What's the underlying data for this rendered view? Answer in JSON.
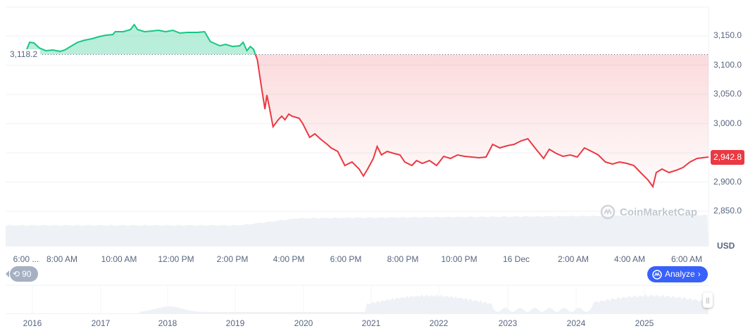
{
  "chart_data": {
    "type": "line",
    "currency_label": "USD",
    "baseline": 3118.2,
    "baseline_label": "3,118.2",
    "current_price": 2942.8,
    "current_price_label": "2,942.8",
    "ylim": [
      2825,
      3200
    ],
    "y_ticks": [
      "2,850.0",
      "2,900.0",
      "2,950.0",
      "3,000.0",
      "3,050.0",
      "3,100.0",
      "3,150.0"
    ],
    "y_tick_values": [
      2850,
      2900,
      2950,
      3000,
      3050,
      3100,
      3150
    ],
    "x_ticks": [
      "6:00 ...",
      "8:00 AM",
      "10:00 AM",
      "12:00 PM",
      "2:00 PM",
      "4:00 PM",
      "6:00 PM",
      "8:00 PM",
      "10:00 PM",
      "16 Dec",
      "2:00 AM",
      "4:00 AM",
      "6:00 AM"
    ],
    "colors": {
      "up": "#16c784",
      "down": "#ea3943",
      "accent": "#3861fb"
    },
    "grid": true,
    "points": [
      [
        "15 Dec 06:46",
        3127.1
      ],
      [
        "15 Dec 06:52",
        3139.2
      ],
      [
        "15 Dec 07:01",
        3138.0
      ],
      [
        "15 Dec 07:12",
        3129.6
      ],
      [
        "15 Dec 07:26",
        3124.7
      ],
      [
        "15 Dec 07:41",
        3125.9
      ],
      [
        "15 Dec 07:56",
        3123.5
      ],
      [
        "15 Dec 08:06",
        3125.9
      ],
      [
        "15 Dec 08:18",
        3131.9
      ],
      [
        "15 Dec 08:33",
        3139.2
      ],
      [
        "15 Dec 08:48",
        3142.8
      ],
      [
        "15 Dec 09:03",
        3145.2
      ],
      [
        "15 Dec 09:18",
        3148.8
      ],
      [
        "15 Dec 09:32",
        3151.2
      ],
      [
        "15 Dec 09:47",
        3152.4
      ],
      [
        "15 Dec 09:52",
        3157.2
      ],
      [
        "15 Dec 10:09",
        3157.2
      ],
      [
        "15 Dec 10:24",
        3160.8
      ],
      [
        "15 Dec 10:32",
        3169.3
      ],
      [
        "15 Dec 10:39",
        3160.8
      ],
      [
        "15 Dec 10:54",
        3157.2
      ],
      [
        "15 Dec 11:09",
        3158.4
      ],
      [
        "15 Dec 11:23",
        3159.6
      ],
      [
        "15 Dec 11:38",
        3157.2
      ],
      [
        "15 Dec 11:53",
        3159.6
      ],
      [
        "15 Dec 12:08",
        3154.8
      ],
      [
        "15 Dec 12:23",
        3156.0
      ],
      [
        "15 Dec 12:45",
        3156.0
      ],
      [
        "15 Dec 13:00",
        3157.2
      ],
      [
        "15 Dec 13:12",
        3140.4
      ],
      [
        "15 Dec 13:22",
        3136.7
      ],
      [
        "15 Dec 13:32",
        3133.1
      ],
      [
        "15 Dec 13:44",
        3135.5
      ],
      [
        "15 Dec 13:59",
        3131.9
      ],
      [
        "15 Dec 14:14",
        3133.1
      ],
      [
        "15 Dec 14:21",
        3139.2
      ],
      [
        "15 Dec 14:29",
        3124.7
      ],
      [
        "15 Dec 14:36",
        3131.9
      ],
      [
        "15 Dec 14:43",
        3127.1
      ],
      [
        "15 Dec 14:51",
        3109.0
      ],
      [
        "15 Dec 15:01",
        3054.8
      ],
      [
        "15 Dec 15:07",
        3024.7
      ],
      [
        "15 Dec 15:11",
        3048.8
      ],
      [
        "15 Dec 15:17",
        3024.7
      ],
      [
        "15 Dec 15:24",
        2994.6
      ],
      [
        "15 Dec 15:35",
        3006.6
      ],
      [
        "15 Dec 15:42",
        3012.6
      ],
      [
        "15 Dec 15:49",
        3006.6
      ],
      [
        "15 Dec 15:57",
        3016.3
      ],
      [
        "15 Dec 16:04",
        3012.6
      ],
      [
        "15 Dec 16:19",
        3009.0
      ],
      [
        "15 Dec 16:26",
        3000.6
      ],
      [
        "15 Dec 16:41",
        2976.5
      ],
      [
        "15 Dec 16:52",
        2982.5
      ],
      [
        "15 Dec 17:03",
        2974.1
      ],
      [
        "15 Dec 17:18",
        2964.5
      ],
      [
        "15 Dec 17:26",
        2958.4
      ],
      [
        "15 Dec 17:40",
        2952.4
      ],
      [
        "15 Dec 17:55",
        2928.3
      ],
      [
        "15 Dec 18:10",
        2934.3
      ],
      [
        "15 Dec 18:25",
        2922.3
      ],
      [
        "15 Dec 18:34",
        2910.2
      ],
      [
        "15 Dec 18:43",
        2922.3
      ],
      [
        "15 Dec 18:55",
        2940.4
      ],
      [
        "15 Dec 19:03",
        2960.8
      ],
      [
        "15 Dec 19:12",
        2946.4
      ],
      [
        "15 Dec 19:24",
        2952.4
      ],
      [
        "15 Dec 19:39",
        2948.8
      ],
      [
        "15 Dec 19:51",
        2946.4
      ],
      [
        "15 Dec 20:01",
        2934.3
      ],
      [
        "15 Dec 20:16",
        2928.3
      ],
      [
        "15 Dec 20:26",
        2936.7
      ],
      [
        "15 Dec 20:38",
        2931.9
      ],
      [
        "15 Dec 20:53",
        2936.7
      ],
      [
        "15 Dec 21:08",
        2928.3
      ],
      [
        "15 Dec 21:23",
        2944.0
      ],
      [
        "15 Dec 21:37",
        2940.4
      ],
      [
        "15 Dec 21:52",
        2946.4
      ],
      [
        "15 Dec 22:07",
        2944.0
      ],
      [
        "15 Dec 22:22",
        2942.8
      ],
      [
        "15 Dec 22:37",
        2941.6
      ],
      [
        "15 Dec 22:52",
        2942.8
      ],
      [
        "15 Dec 23:06",
        2964.5
      ],
      [
        "15 Dec 23:21",
        2958.4
      ],
      [
        "15 Dec 23:36",
        2962.0
      ],
      [
        "15 Dec 23:51",
        2964.5
      ],
      [
        "16 Dec 00:06",
        2970.5
      ],
      [
        "16 Dec 00:20",
        2974.1
      ],
      [
        "16 Dec 00:35",
        2958.4
      ],
      [
        "16 Dec 00:53",
        2940.4
      ],
      [
        "16 Dec 01:05",
        2956.0
      ],
      [
        "16 Dec 01:20",
        2948.8
      ],
      [
        "16 Dec 01:34",
        2944.0
      ],
      [
        "16 Dec 01:49",
        2946.4
      ],
      [
        "16 Dec 02:04",
        2942.8
      ],
      [
        "16 Dec 02:19",
        2958.4
      ],
      [
        "16 Dec 02:34",
        2952.4
      ],
      [
        "16 Dec 02:48",
        2946.4
      ],
      [
        "16 Dec 03:03",
        2934.3
      ],
      [
        "16 Dec 03:18",
        2930.7
      ],
      [
        "16 Dec 03:33",
        2934.3
      ],
      [
        "16 Dec 03:48",
        2931.9
      ],
      [
        "16 Dec 04:03",
        2928.3
      ],
      [
        "16 Dec 04:17",
        2916.3
      ],
      [
        "16 Dec 04:32",
        2904.2
      ],
      [
        "16 Dec 04:43",
        2892.2
      ],
      [
        "16 Dec 04:50",
        2916.3
      ],
      [
        "16 Dec 05:02",
        2922.3
      ],
      [
        "16 Dec 05:17",
        2916.3
      ],
      [
        "16 Dec 05:31",
        2919.9
      ],
      [
        "16 Dec 05:46",
        2924.7
      ],
      [
        "16 Dec 06:01",
        2934.3
      ],
      [
        "16 Dec 06:16",
        2940.4
      ],
      [
        "16 Dec 06:40",
        2942.8
      ]
    ]
  },
  "navigator": {
    "years": [
      "2016",
      "2017",
      "2018",
      "2019",
      "2020",
      "2021",
      "2022",
      "2023",
      "2024",
      "2025"
    ]
  },
  "controls": {
    "history_label": "90",
    "history_icon": "history-clock-icon",
    "analyze_label": "Analyze",
    "analyze_icon": "cmc-ai-icon"
  },
  "watermark": "CoinMarketCap"
}
